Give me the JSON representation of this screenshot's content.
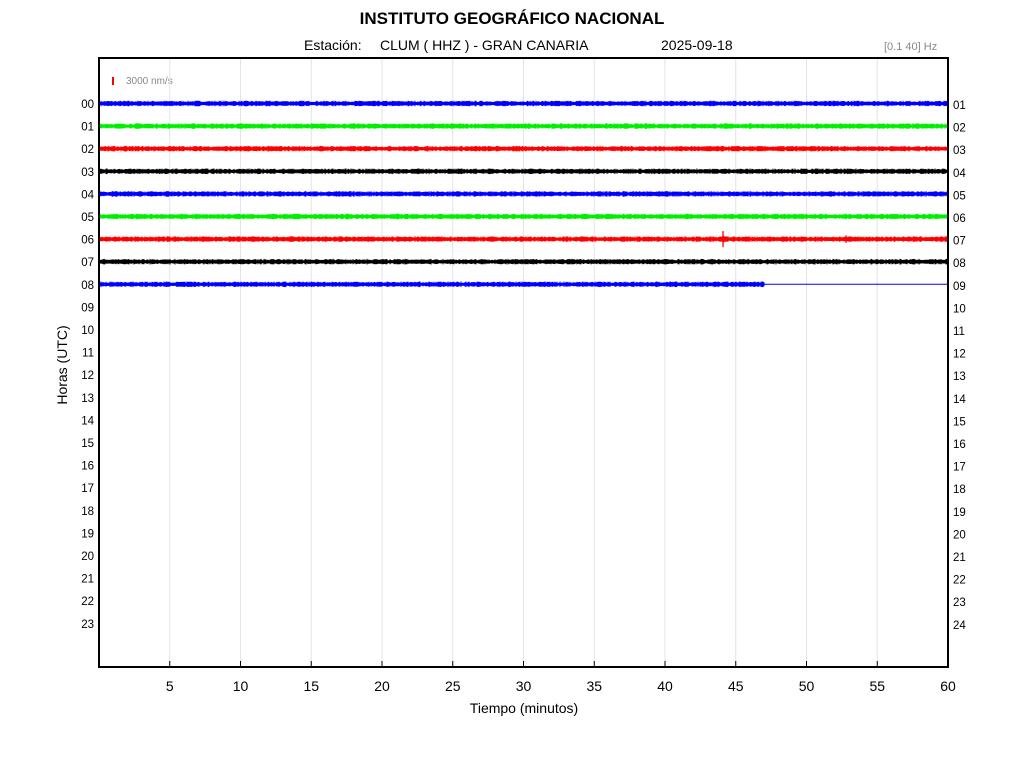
{
  "header": {
    "title": "INSTITUTO GEOGRÁFICO NACIONAL",
    "station_label": "Estación:",
    "station_name": "CLUM ( HHZ ) - GRAN CANARIA",
    "date": "2025-09-18",
    "band": "[0.1 40] Hz"
  },
  "scale": {
    "label": "3000 nm/s",
    "color": "#ff0000"
  },
  "chart_data": {
    "type": "line",
    "xlabel": "Tiempo (minutos)",
    "ylabel": "Horas (UTC)",
    "xlim": [
      0,
      60
    ],
    "x_ticks": [
      5,
      10,
      15,
      20,
      25,
      30,
      35,
      40,
      45,
      50,
      55,
      60
    ],
    "left_hour_labels": [
      "00",
      "01",
      "02",
      "03",
      "04",
      "05",
      "06",
      "07",
      "08",
      "09",
      "10",
      "11",
      "12",
      "13",
      "14",
      "15",
      "16",
      "17",
      "18",
      "19",
      "20",
      "21",
      "22",
      "23"
    ],
    "right_hour_labels": [
      "01",
      "02",
      "03",
      "04",
      "05",
      "06",
      "07",
      "08",
      "09",
      "10",
      "11",
      "12",
      "13",
      "14",
      "15",
      "16",
      "17",
      "18",
      "19",
      "20",
      "21",
      "22",
      "23",
      "24"
    ],
    "grid": true,
    "series": [
      {
        "hour": 0,
        "color": "#0000ff",
        "data_end": 60,
        "events": []
      },
      {
        "hour": 1,
        "color": "#00ee00",
        "data_end": 60,
        "events": []
      },
      {
        "hour": 2,
        "color": "#ff0000",
        "data_end": 60,
        "events": []
      },
      {
        "hour": 3,
        "color": "#000000",
        "data_end": 60,
        "events": []
      },
      {
        "hour": 4,
        "color": "#0000ff",
        "data_end": 60,
        "events": []
      },
      {
        "hour": 5,
        "color": "#00ee00",
        "data_end": 60,
        "events": []
      },
      {
        "hour": 6,
        "color": "#ff0000",
        "data_end": 60,
        "events": [
          {
            "minute": 44.1,
            "amplitude": 3000
          },
          {
            "minute": 52.8,
            "amplitude": 1400
          },
          {
            "minute": 57.0,
            "amplitude": 700
          }
        ]
      },
      {
        "hour": 7,
        "color": "#000000",
        "data_end": 60,
        "events": []
      },
      {
        "hour": 8,
        "color": "#0000ff",
        "data_end": 47,
        "events": [
          {
            "minute": 18.3,
            "amplitude": 700
          }
        ]
      }
    ]
  }
}
